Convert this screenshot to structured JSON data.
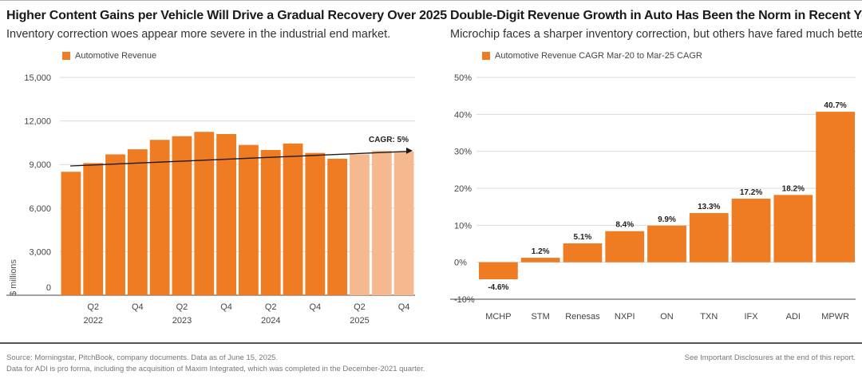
{
  "colors": {
    "actual": "#ef7b22",
    "forecast": "#f6b98f",
    "grid": "#d9d9d9",
    "axis": "#444444"
  },
  "left": {
    "title": "Higher Content Gains per Vehicle Will Drive a Gradual Recovery Over 2025",
    "subtitle": "Inventory correction woes appear more severe in the industrial end market.",
    "legend": "Automotive Revenue",
    "ylabel": "$ millions",
    "cagr_label": "CAGR: 5%"
  },
  "right": {
    "title": "Double-Digit Revenue Growth in Auto Has Been the Norm in Recent Years",
    "subtitle": "Microchip faces a sharper inventory correction, but others have fared much better.",
    "legend": "Automotive Revenue CAGR Mar-20 to Mar-25 CAGR"
  },
  "footer": {
    "source": "Source: Morningstar, PitchBook, company documents. Data as of June 15, 2025.",
    "note": "Data for ADI is pro forma, including the acquisition of Maxim Integrated, which was completed in the December-2021 quarter.",
    "disclosure": "See Important Disclosures at the end of this report."
  },
  "chart_data": [
    {
      "type": "bar",
      "title": "Higher Content Gains per Vehicle Will Drive a Gradual Recovery Over 2025",
      "ylabel": "$ millions",
      "ylim": [
        0,
        15000
      ],
      "yticks": [
        0,
        3000,
        6000,
        9000,
        12000,
        15000
      ],
      "ytick_labels": [
        "0",
        "3,000",
        "6,000",
        "9,000",
        "12,000",
        "15,000"
      ],
      "quarters": [
        "Q1 2022",
        "Q2 2022",
        "Q3 2022",
        "Q4 2022",
        "Q1 2023",
        "Q2 2023",
        "Q3 2023",
        "Q4 2023",
        "Q1 2024",
        "Q2 2024",
        "Q3 2024",
        "Q4 2024",
        "Q1 2025",
        "Q2 2025",
        "Q3 2025",
        "Q4 2025"
      ],
      "values": [
        8500,
        9100,
        9700,
        10050,
        10700,
        10950,
        11250,
        11100,
        10350,
        10000,
        10450,
        9800,
        9400,
        9700,
        9950,
        9900
      ],
      "forecast": [
        false,
        false,
        false,
        false,
        false,
        false,
        false,
        false,
        false,
        false,
        false,
        false,
        false,
        true,
        true,
        true
      ],
      "xtick_labels": [
        "",
        "Q2",
        "",
        "Q4",
        "",
        "Q2",
        "",
        "Q4",
        "",
        "Q2",
        "",
        "Q4",
        "",
        "Q2",
        "",
        "Q4"
      ],
      "year_labels": [
        {
          "year": "2022",
          "under_index": 1
        },
        {
          "year": "2023",
          "under_index": 5
        },
        {
          "year": "2024",
          "under_index": 9
        },
        {
          "year": "2025",
          "under_index": 13
        }
      ],
      "trendline": {
        "start_value": 8900,
        "end_value": 9950,
        "label": "CAGR: 5%"
      },
      "legend": [
        "Automotive Revenue"
      ],
      "grid": true
    },
    {
      "type": "bar",
      "title": "Double-Digit Revenue Growth in Auto Has Been the Norm in Recent Years",
      "ylim": [
        -10,
        50
      ],
      "yticks": [
        -10,
        0,
        10,
        20,
        30,
        40,
        50
      ],
      "ytick_labels": [
        "-10%",
        "0%",
        "10%",
        "20%",
        "30%",
        "40%",
        "50%"
      ],
      "categories": [
        "MCHP",
        "STM",
        "Renesas",
        "NXPI",
        "ON",
        "TXN",
        "IFX",
        "ADI",
        "MPWR"
      ],
      "values": [
        -4.6,
        1.2,
        5.1,
        8.4,
        9.9,
        13.3,
        17.2,
        18.2,
        40.7
      ],
      "value_labels": [
        "-4.6%",
        "1.2%",
        "5.1%",
        "8.4%",
        "9.9%",
        "13.3%",
        "17.2%",
        "18.2%",
        "40.7%"
      ],
      "legend": [
        "Automotive Revenue CAGR Mar-20 to Mar-25 CAGR"
      ],
      "grid": true
    }
  ]
}
